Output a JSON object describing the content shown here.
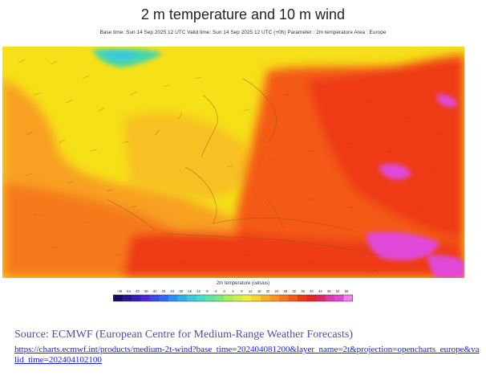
{
  "title": "2 m temperature and 10 m wind",
  "subtitle": "Base time: Sun 14 Sep 2025 12 UTC Valid time: Sun 14 Sep 2025 12 UTC (+0h) Parameter : 2m temperature Area : Europe",
  "legend": {
    "title": "2m temperature (celsius)",
    "ticks": [
      "-48",
      "-44",
      "-40",
      "-36",
      "-32",
      "-28",
      "-24",
      "-20",
      "-16",
      "-12",
      "-8",
      "-4",
      "0",
      "4",
      "8",
      "12",
      "16",
      "20",
      "24",
      "28",
      "32",
      "36",
      "40",
      "44",
      "48",
      "52",
      "56"
    ],
    "colors": [
      "#1a0b5e",
      "#2a1490",
      "#3a1db8",
      "#4a2ad8",
      "#3a4ae8",
      "#2f6af0",
      "#2f8cf0",
      "#32aee8",
      "#38c8e0",
      "#46dcc8",
      "#5ce6a4",
      "#7cea7a",
      "#a4ee5a",
      "#ccf04a",
      "#eeee3a",
      "#fad42e",
      "#fbb026",
      "#fa9420",
      "#f8781c",
      "#f45a18",
      "#ee3a16",
      "#e42622",
      "#dc2a60",
      "#dc3aa8",
      "#e048d8",
      "#ee80f0"
    ]
  },
  "source": {
    "text": "Source: ECMWF (European Centre for Medium-Range Weather Forecasts)",
    "url": "https://charts.ecmwf.int/products/medium-2t-wind?base_time=202404081200&layer_name=2t&projection=opencharts_europe&valid_time=202404102100"
  },
  "map": {
    "background_color": "#f6e018",
    "colors": {
      "yellow": "#f6e018",
      "yellow_orange": "#f8c020",
      "orange": "#f8a020",
      "deep_orange": "#f67a1c",
      "red_orange": "#f45a18",
      "red": "#ee3a16",
      "magenta": "#e048d8",
      "green_cold": "#4cd6a8",
      "cyan_cold": "#38c8e0"
    }
  }
}
